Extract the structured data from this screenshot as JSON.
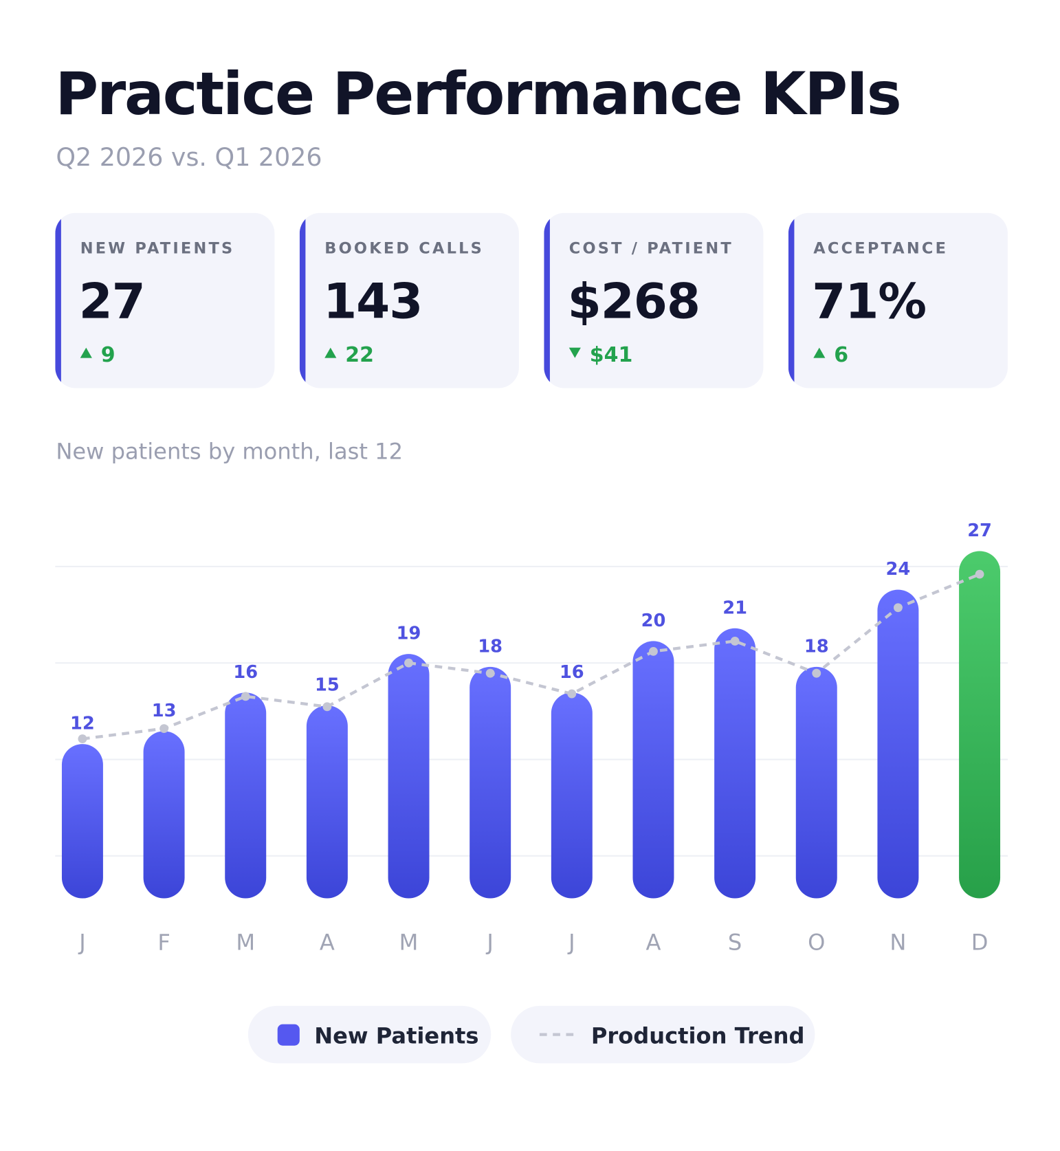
{
  "header": {
    "title": "Practice Performance KPIs",
    "subtitle": "Q2 2026 vs. Q1 2026"
  },
  "kpis": [
    {
      "label": "NEW PATIENTS",
      "value": "27",
      "delta": "9",
      "direction": "up"
    },
    {
      "label": "BOOKED CALLS",
      "value": "143",
      "delta": "22",
      "direction": "up"
    },
    {
      "label": "COST / PATIENT",
      "value": "$268",
      "delta": "$41",
      "direction": "down"
    },
    {
      "label": "ACCEPTANCE",
      "value": "71%",
      "delta": "6",
      "direction": "up"
    }
  ],
  "chart_data": {
    "type": "bar",
    "title": "New patients by month, last 12",
    "categories": [
      "J",
      "F",
      "M",
      "A",
      "M",
      "J",
      "J",
      "A",
      "S",
      "O",
      "N",
      "D"
    ],
    "series": [
      {
        "name": "New Patients",
        "type": "bar",
        "color": "#5558f0",
        "highlight_last": true,
        "highlight_color": "#34b859",
        "values": [
          12,
          13,
          16,
          15,
          19,
          18,
          16,
          20,
          21,
          18,
          24,
          27
        ]
      },
      {
        "name": "Production Trend",
        "type": "line",
        "color": "#c4c6d2",
        "dashed": true,
        "values": [
          12.4,
          13.2,
          15.7,
          14.9,
          18.3,
          17.5,
          15.9,
          19.2,
          20.0,
          17.5,
          22.6,
          25.2
        ]
      }
    ],
    "ylim": [
      0,
      32.6
    ],
    "yticks": [
      3.3,
      10.8,
      18.3,
      25.8
    ],
    "grid": true,
    "data_labels": true,
    "legend": "bottom"
  }
}
